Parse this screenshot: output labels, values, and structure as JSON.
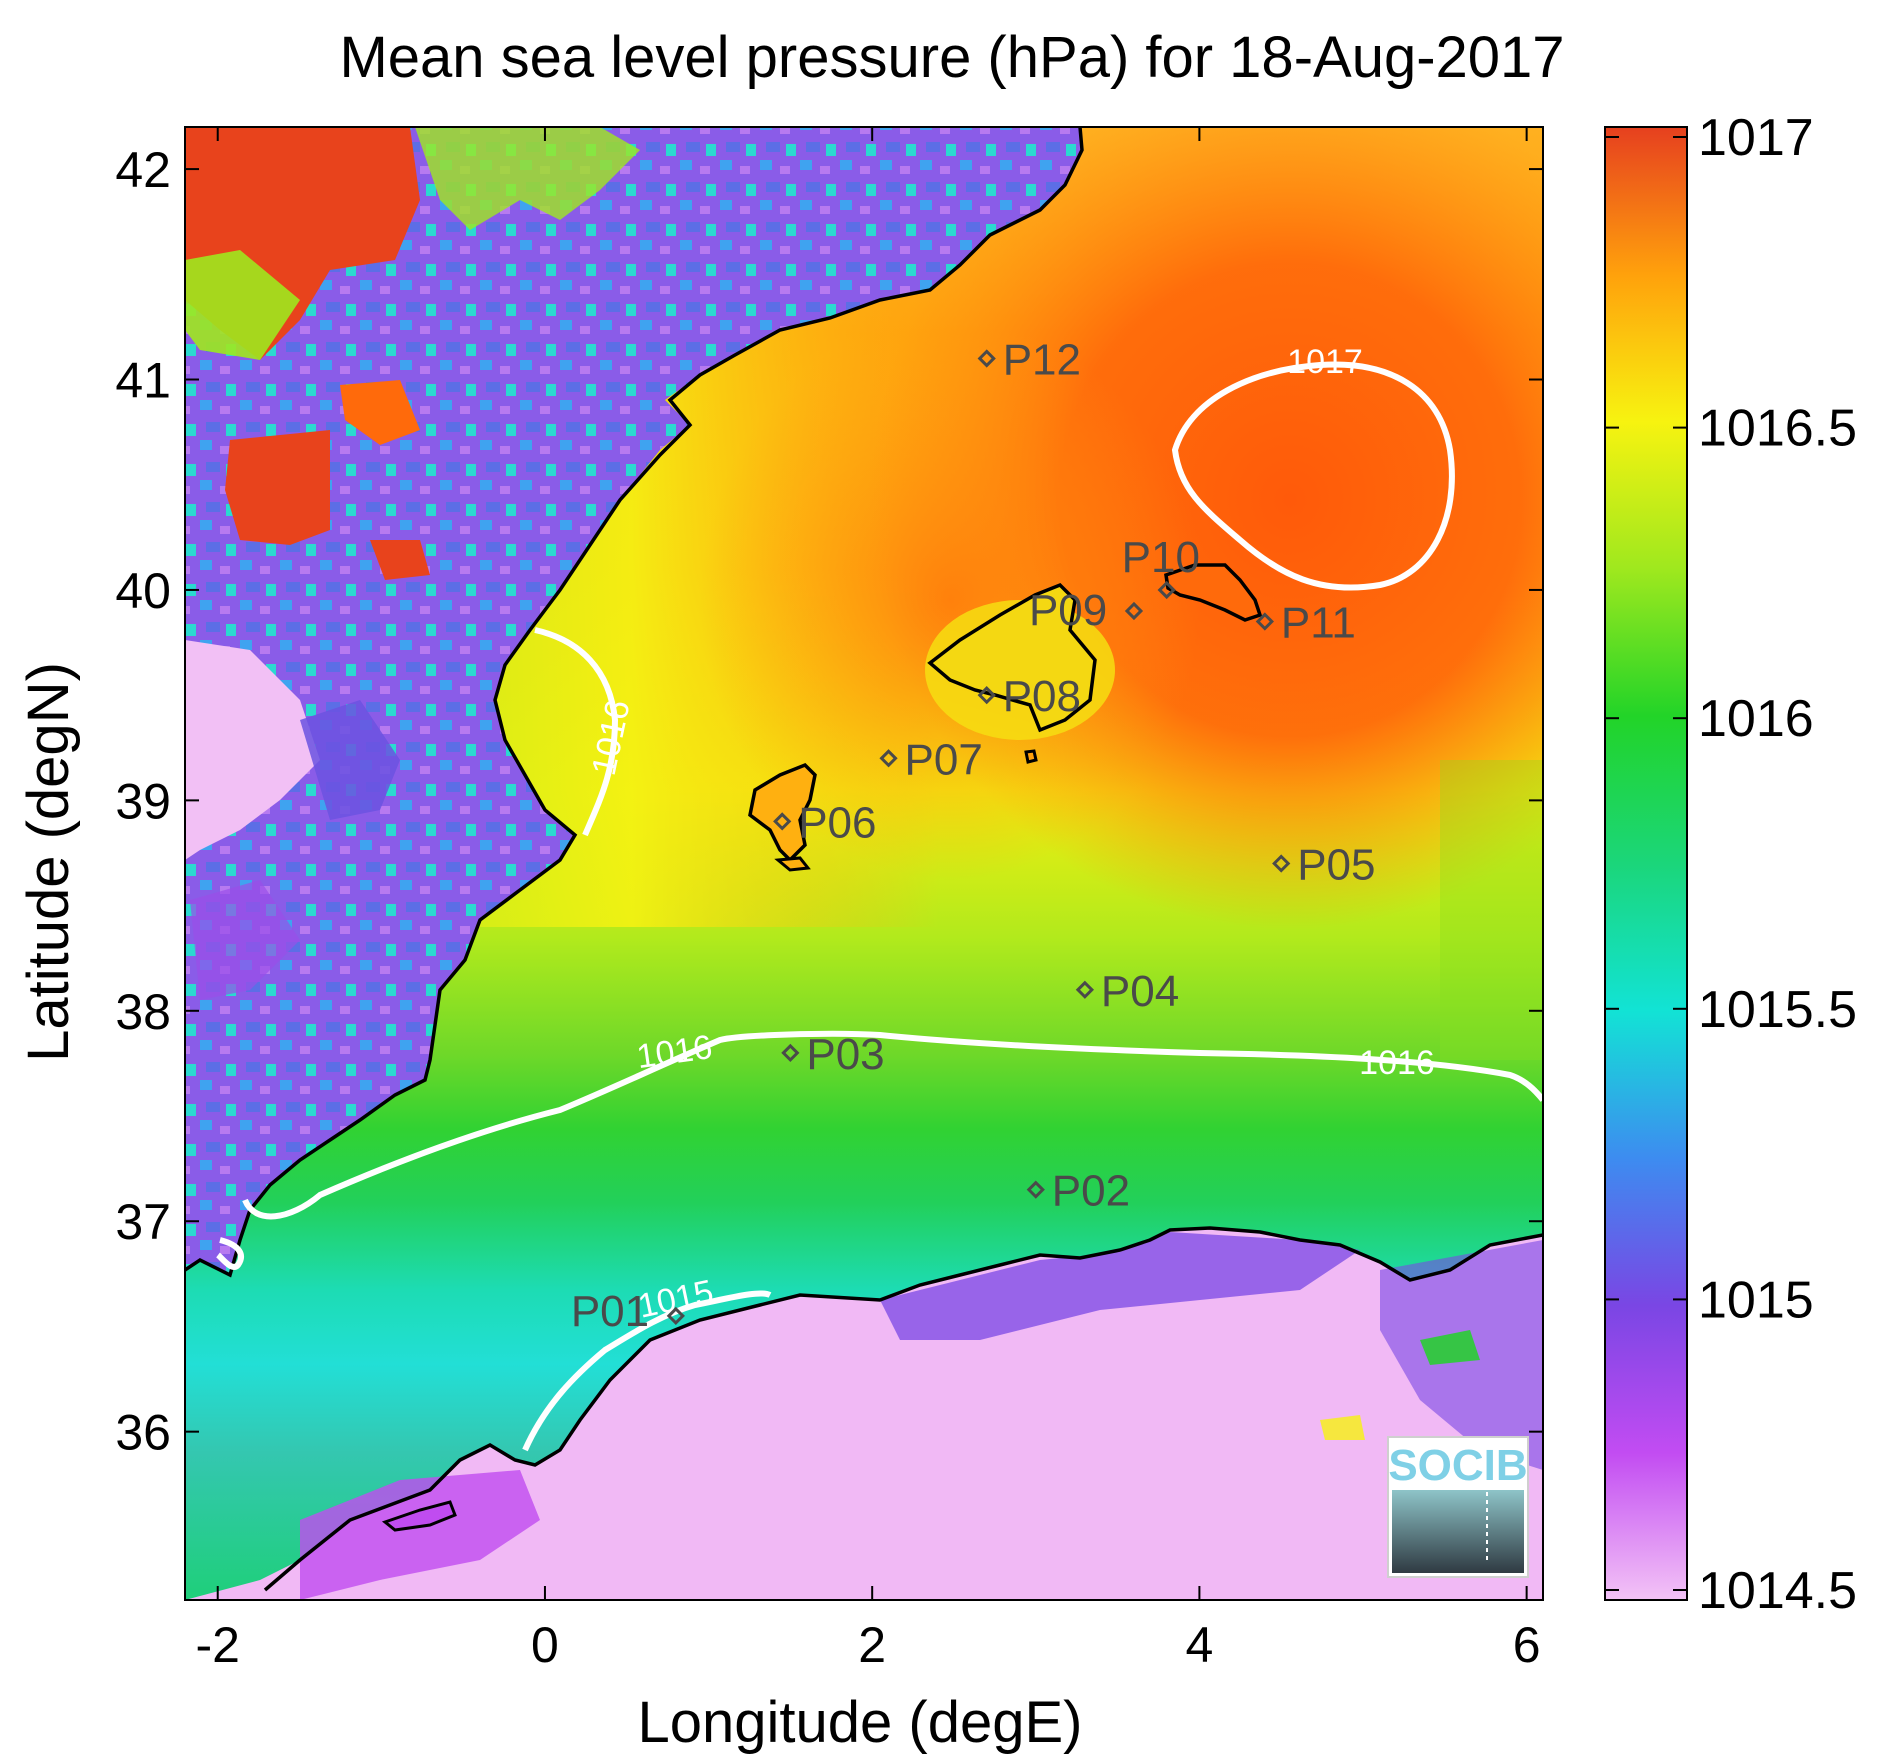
{
  "title": "Mean sea level pressure (hPa) for 18-Aug-2017",
  "x_axis": {
    "label": "Longitude (degE)",
    "ticks": [
      "-2",
      "0",
      "2",
      "4",
      "6"
    ]
  },
  "y_axis": {
    "label": "Latitude (degN)",
    "ticks": [
      "36",
      "37",
      "38",
      "39",
      "40",
      "41",
      "42"
    ]
  },
  "colorbar": {
    "ticks": [
      "1014.5",
      "1015",
      "1015.5",
      "1016",
      "1016.5",
      "1017"
    ]
  },
  "logo": {
    "text": "SOCIB"
  },
  "chart_data": {
    "type": "heatmap",
    "title": "Mean sea level pressure (hPa) for 18-Aug-2017",
    "xlabel": "Longitude (degE)",
    "ylabel": "Latitude (degN)",
    "xlim": [
      -2.2,
      6.1
    ],
    "ylim": [
      35.2,
      42.2
    ],
    "colorbar_range": [
      1014.5,
      1017.0
    ],
    "colormap": "jet-like with magenta low end",
    "colors": {
      "low": "#f1b9f5",
      "magenta": "#c04cf0",
      "purple": "#7a48e4",
      "blue": "#3a8ff0",
      "cyan": "#15e3d4",
      "green": "#21d430",
      "yellowgreen": "#9fe81e",
      "yellow": "#f7f310",
      "orange": "#ffa00c",
      "orangered": "#ff5c0a",
      "red": "#e9431d"
    },
    "contours": [
      {
        "level": 1016,
        "labels": [
          "1016",
          "1016",
          "1016"
        ]
      },
      {
        "level": 1017,
        "labels": [
          "1017"
        ]
      },
      {
        "level": 1015,
        "labels": [
          "1015"
        ]
      }
    ],
    "stations": [
      {
        "name": "P01",
        "lon": 0.8,
        "lat": 36.55
      },
      {
        "name": "P02",
        "lon": 3.0,
        "lat": 37.15
      },
      {
        "name": "P03",
        "lon": 1.5,
        "lat": 37.8
      },
      {
        "name": "P04",
        "lon": 3.3,
        "lat": 38.1
      },
      {
        "name": "P05",
        "lon": 4.5,
        "lat": 38.7
      },
      {
        "name": "P06",
        "lon": 1.45,
        "lat": 38.9
      },
      {
        "name": "P07",
        "lon": 2.1,
        "lat": 39.2
      },
      {
        "name": "P08",
        "lon": 2.7,
        "lat": 39.5
      },
      {
        "name": "P09",
        "lon": 3.6,
        "lat": 39.9
      },
      {
        "name": "P10",
        "lon": 3.8,
        "lat": 40.0
      },
      {
        "name": "P11",
        "lon": 4.4,
        "lat": 39.85
      },
      {
        "name": "P12",
        "lon": 2.7,
        "lat": 41.1
      }
    ]
  }
}
